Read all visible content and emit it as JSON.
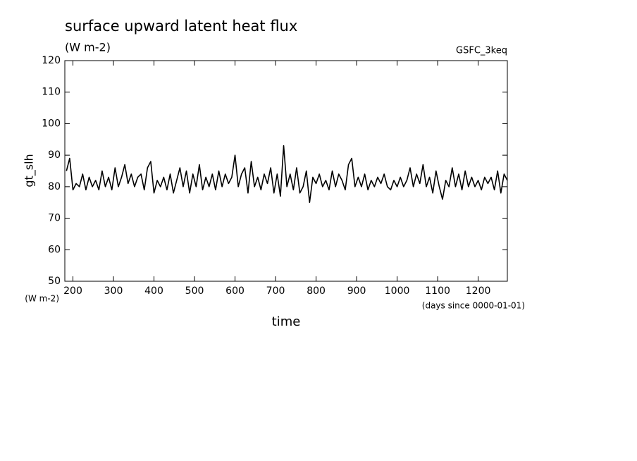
{
  "chart_data": {
    "type": "line",
    "title": "surface upward latent heat flux",
    "subtitle": "(W m-2)",
    "annotation": "GSFC_3keq",
    "y_label": "gt_slh",
    "y_units": "(W m-2)",
    "x_label": "time",
    "x_units": "(days since 0000-01-01)",
    "x": [
      184,
      192,
      200,
      208,
      216,
      224,
      232,
      240,
      248,
      256,
      264,
      272,
      280,
      288,
      296,
      304,
      312,
      320,
      328,
      336,
      344,
      352,
      360,
      368,
      376,
      384,
      392,
      400,
      408,
      416,
      424,
      432,
      440,
      448,
      456,
      464,
      472,
      480,
      488,
      496,
      504,
      512,
      520,
      528,
      536,
      544,
      552,
      560,
      568,
      576,
      584,
      592,
      600,
      608,
      616,
      624,
      632,
      640,
      648,
      656,
      664,
      672,
      680,
      688,
      696,
      704,
      712,
      720,
      728,
      736,
      744,
      752,
      760,
      768,
      776,
      784,
      792,
      800,
      808,
      816,
      824,
      832,
      840,
      848,
      856,
      864,
      872,
      880,
      888,
      896,
      904,
      912,
      920,
      928,
      936,
      944,
      952,
      960,
      968,
      976,
      984,
      992,
      1000,
      1008,
      1016,
      1024,
      1032,
      1040,
      1048,
      1056,
      1064,
      1072,
      1080,
      1088,
      1096,
      1104,
      1112,
      1120,
      1128,
      1136,
      1144,
      1152,
      1160,
      1168,
      1176,
      1184,
      1192,
      1200,
      1208,
      1216,
      1224,
      1232,
      1240,
      1248,
      1256,
      1264,
      1272
    ],
    "series": [
      {
        "name": "gt_slh",
        "color": "#000000",
        "values": [
          85,
          89,
          79,
          81,
          80,
          84,
          79,
          83,
          80,
          82,
          79,
          85,
          80,
          83,
          79,
          86,
          80,
          83,
          87,
          81,
          84,
          80,
          83,
          84,
          79,
          86,
          88,
          78,
          82,
          80,
          83,
          79,
          84,
          78,
          82,
          86,
          80,
          85,
          78,
          84,
          80,
          87,
          79,
          83,
          80,
          84,
          79,
          85,
          80,
          84,
          81,
          83,
          90,
          80,
          84,
          86,
          78,
          88,
          80,
          83,
          79,
          84,
          81,
          86,
          78,
          84,
          77,
          93,
          80,
          84,
          79,
          86,
          78,
          80,
          85,
          75,
          83,
          81,
          84,
          80,
          82,
          79,
          85,
          80,
          84,
          82,
          79,
          87,
          89,
          80,
          83,
          80,
          84,
          79,
          82,
          80,
          83,
          81,
          84,
          80,
          79,
          82,
          80,
          83,
          80,
          82,
          86,
          80,
          84,
          81,
          87,
          80,
          83,
          78,
          85,
          80,
          76,
          82,
          80,
          86,
          80,
          84,
          79,
          85,
          80,
          83,
          80,
          82,
          79,
          83,
          81,
          83,
          79,
          85,
          78,
          84,
          82
        ]
      }
    ],
    "xlim": [
      180,
      1272
    ],
    "ylim": [
      50,
      120
    ],
    "xticks": [
      200,
      300,
      400,
      500,
      600,
      700,
      800,
      900,
      1000,
      1100,
      1200
    ],
    "yticks": [
      50,
      60,
      70,
      80,
      90,
      100,
      110,
      120
    ]
  }
}
